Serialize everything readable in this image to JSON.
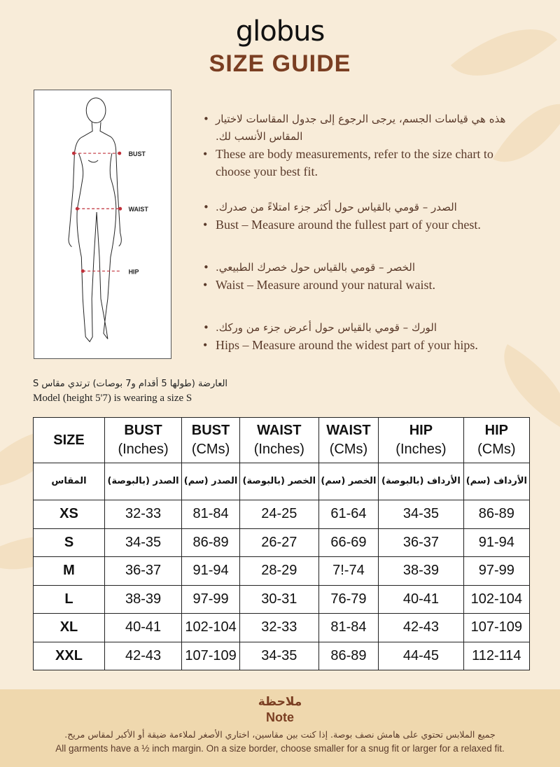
{
  "brand": "globus",
  "title": "SIZE GUIDE",
  "figure": {
    "labels": {
      "bust": "BUST",
      "waist": "WAIST",
      "hip": "HIP"
    }
  },
  "bullets": [
    {
      "ar": "هذه هي قياسات الجسم، يرجى الرجوع إلى جدول المقاسات لاختيار المقاس الأنسب لك.",
      "en": "These are body measurements, refer to the size chart to choose your best fit."
    },
    {
      "ar": "الصدر – قومي بالقياس حول أكثر جزء امتلاءً من صدرك.",
      "en": "Bust – Measure around the fullest part of your chest."
    },
    {
      "ar": "الخصر – قومي بالقياس حول خصرك الطبيعي.",
      "en": "Waist – Measure around your natural waist."
    },
    {
      "ar": "الورك – قومي بالقياس حول أعرض جزء من وركك.",
      "en": "Hips – Measure around the widest part of your hips."
    }
  ],
  "model": {
    "ar": "العارضة (طولها 5 أقدام و7 بوصات) ترتدي مقاس S",
    "en": "Model (height 5'7) is wearing a size S"
  },
  "table": {
    "headers": [
      {
        "main": "SIZE",
        "unit": ""
      },
      {
        "main": "BUST",
        "unit": "(Inches)"
      },
      {
        "main": "BUST",
        "unit": "(CMs)"
      },
      {
        "main": "WAIST",
        "unit": "(Inches)"
      },
      {
        "main": "WAIST",
        "unit": "(CMs)"
      },
      {
        "main": "HIP",
        "unit": "(Inches)"
      },
      {
        "main": "HIP",
        "unit": "(CMs)"
      }
    ],
    "ar_headers": [
      "المقاس",
      "الصدر (بالبوصة)",
      "الصدر (سم)",
      "الخصر (بالبوصة)",
      "الخصر (سم)",
      "الأرداف (بالبوصة)",
      "الأرداف (سم)"
    ],
    "rows": [
      [
        "XS",
        "32-33",
        "81-84",
        "24-25",
        "61-64",
        "34-35",
        "86-89"
      ],
      [
        "S",
        "34-35",
        "86-89",
        "26-27",
        "66-69",
        "36-37",
        "91-94"
      ],
      [
        "M",
        "36-37",
        "91-94",
        "28-29",
        "7!-74",
        "38-39",
        "97-99"
      ],
      [
        "L",
        "38-39",
        "97-99",
        "30-31",
        "76-79",
        "40-41",
        "102-104"
      ],
      [
        "XL",
        "40-41",
        "102-104",
        "32-33",
        "81-84",
        "42-43",
        "107-109"
      ],
      [
        "XXL",
        "42-43",
        "107-109",
        "34-35",
        "86-89",
        "44-45",
        "112-114"
      ]
    ]
  },
  "note": {
    "title_ar": "ملاحظة",
    "title_en": "Note",
    "text_ar": "جميع الملابس تحتوي على هامش نصف بوصة. إذا كنت بين مقاسين، اختاري الأصغر لملاءمة ضيقة أو الأكبر لمقاس مريح.",
    "text_en": "All garments have a ½ inch margin. On a size border, choose smaller for a snug fit or larger for a relaxed fit."
  },
  "colors": {
    "accent": "#7a3e22",
    "background": "#f8ecd9",
    "note_band": "#efd8ae",
    "measure_line": "#c0303a"
  }
}
